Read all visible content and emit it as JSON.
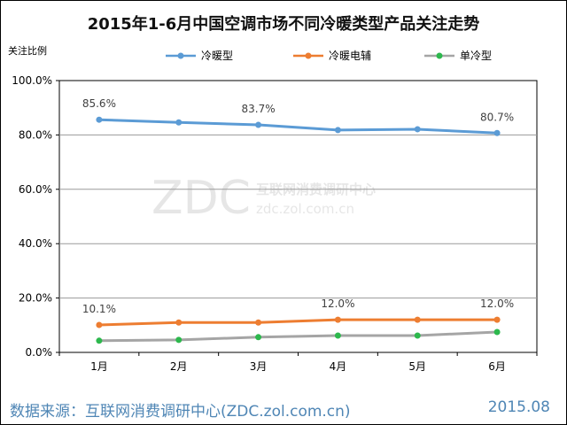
{
  "title": "2015年1-6月中国空调市场不同冷暖类型产品关注走势",
  "footer": {
    "source": "数据来源：互联网消费调研中心(ZDC.zol.com.cn)",
    "date": "2015.08"
  },
  "watermark": {
    "logo": "ZDC",
    "cn": "互联网消费调研中心",
    "url": "zdc.zol.com.cn"
  },
  "chart_data": {
    "type": "line",
    "title": "2015年1-6月中国空调市场不同冷暖类型产品关注走势",
    "ylabel": "关注比例",
    "xlabel": "",
    "categories": [
      "1月",
      "2月",
      "3月",
      "4月",
      "5月",
      "6月"
    ],
    "ylim": [
      0,
      100
    ],
    "yticks": [
      "0.0%",
      "20.0%",
      "40.0%",
      "60.0%",
      "80.0%",
      "100.0%"
    ],
    "grid": true,
    "legend_position": "top",
    "series": [
      {
        "name": "冷暖型",
        "color": "#5b9bd5",
        "values": [
          85.6,
          84.6,
          83.7,
          81.8,
          82.1,
          80.7
        ],
        "labels": [
          "85.6%",
          "",
          "83.7%",
          "",
          "",
          "80.7%"
        ]
      },
      {
        "name": "冷暖电辅",
        "color": "#ed7d31",
        "values": [
          10.1,
          11.0,
          11.0,
          12.0,
          12.0,
          12.0
        ],
        "labels": [
          "10.1%",
          "",
          "",
          "12.0%",
          "",
          "12.0%"
        ]
      },
      {
        "name": "单冷型",
        "color": "#a5a5a5",
        "marker_color": "#2db84d",
        "values": [
          4.3,
          4.6,
          5.6,
          6.2,
          6.2,
          7.5
        ],
        "labels": [
          "",
          "",
          "",
          "",
          "",
          ""
        ]
      }
    ]
  }
}
